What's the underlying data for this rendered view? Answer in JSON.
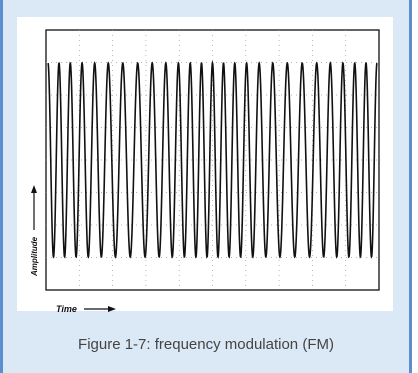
{
  "chart_data": {
    "type": "line",
    "title": "",
    "xlabel": "Time",
    "ylabel": "Amplitude",
    "description_x_range": [
      0,
      1
    ],
    "ylim": [
      -1.1,
      1.1
    ],
    "grid": true,
    "series": [
      {
        "signal": "frequency-modulated sinusoid",
        "cycles_visible": 26,
        "amplitude": 1.0,
        "carrier_cycles": 26,
        "deviation_cycles": 4,
        "modulating_cycles": 2
      }
    ]
  },
  "figure": {
    "caption": "Figure 1-7: frequency modulation (FM)"
  },
  "colors": {
    "panel_bg": "#dbe8f5",
    "panel_border": "#5b8fcf",
    "trace": "#111111",
    "grid": "#9a9a9a"
  }
}
